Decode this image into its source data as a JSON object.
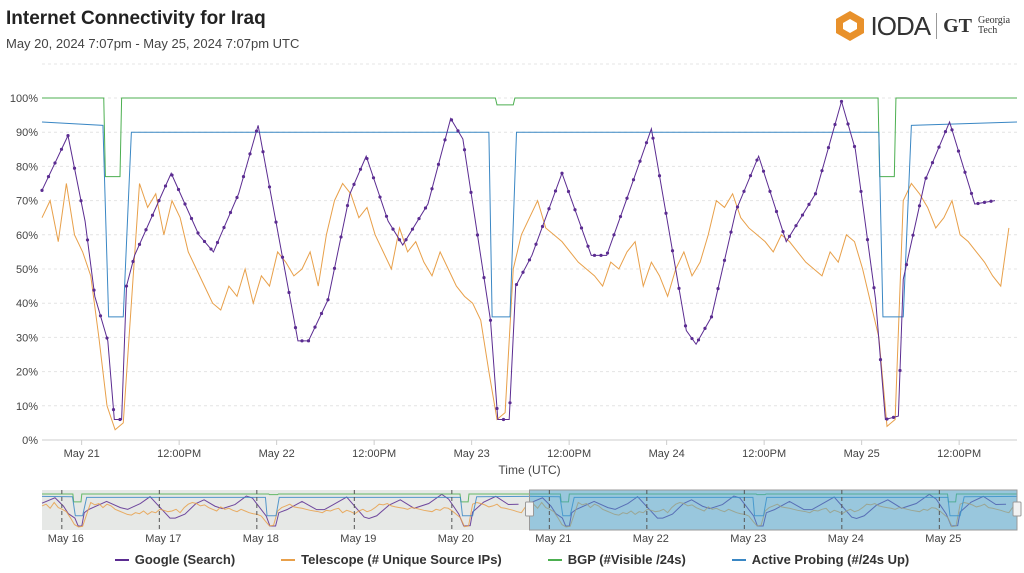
{
  "title": "Internet Connectivity for Iraq",
  "subtitle": "May 20, 2024 7:07pm - May 25, 2024 7:07pm UTC",
  "logo": {
    "text": "IODA",
    "partner": "Georgia Tech",
    "partner_mark": "GT"
  },
  "chart_data": {
    "type": "line",
    "xlabel": "Time (UTC)",
    "x_unit": "hours since May 20, 2024 19:07 UTC",
    "xlim": [
      0,
      120
    ],
    "ylim": [
      0,
      100
    ],
    "yticks": [
      "0%",
      "10%",
      "20%",
      "30%",
      "40%",
      "50%",
      "60%",
      "70%",
      "80%",
      "90%",
      "100%"
    ],
    "xticks": [
      {
        "h": 4.88,
        "label": "May 21"
      },
      {
        "h": 16.88,
        "label": "12:00PM"
      },
      {
        "h": 28.88,
        "label": "May 22"
      },
      {
        "h": 40.88,
        "label": "12:00PM"
      },
      {
        "h": 52.88,
        "label": "May 23"
      },
      {
        "h": 64.88,
        "label": "12:00PM"
      },
      {
        "h": 76.88,
        "label": "May 24"
      },
      {
        "h": 88.88,
        "label": "12:00PM"
      },
      {
        "h": 100.88,
        "label": "May 25"
      },
      {
        "h": 112.88,
        "label": "12:00PM"
      }
    ],
    "navigator_ticks": [
      "May 16",
      "May 17",
      "May 18",
      "May 19",
      "May 20",
      "May 21",
      "May 22",
      "May 23",
      "May 24",
      "May 25"
    ],
    "series": [
      {
        "name": "Google (Search)",
        "color": "#5b2c91",
        "markers": true,
        "points": [
          [
            0,
            73
          ],
          [
            3.2,
            89
          ],
          [
            5.3,
            64
          ],
          [
            6.5,
            42
          ],
          [
            8.1,
            29
          ],
          [
            8.9,
            6
          ],
          [
            9.8,
            6
          ],
          [
            10.4,
            45
          ],
          [
            11.4,
            54
          ],
          [
            15.9,
            78
          ],
          [
            19.3,
            60
          ],
          [
            21.1,
            55
          ],
          [
            24.2,
            72
          ],
          [
            26.6,
            92
          ],
          [
            31.5,
            29
          ],
          [
            32.8,
            29
          ],
          [
            35.2,
            41
          ],
          [
            37.9,
            72
          ],
          [
            39.9,
            83
          ],
          [
            42.6,
            64
          ],
          [
            44.4,
            57
          ],
          [
            47.5,
            69
          ],
          [
            50.3,
            94
          ],
          [
            51.8,
            88
          ],
          [
            55.2,
            35
          ],
          [
            56.1,
            6
          ],
          [
            57.5,
            6
          ],
          [
            58.3,
            45
          ],
          [
            60.3,
            54
          ],
          [
            64,
            78
          ],
          [
            67.6,
            54
          ],
          [
            69.5,
            54
          ],
          [
            71.9,
            70
          ],
          [
            75,
            91
          ],
          [
            79.3,
            32
          ],
          [
            80.5,
            28
          ],
          [
            82.4,
            36
          ],
          [
            85.4,
            67
          ],
          [
            88.2,
            83
          ],
          [
            91.6,
            58
          ],
          [
            95.2,
            72
          ],
          [
            98.4,
            99
          ],
          [
            100.1,
            85
          ],
          [
            102.6,
            41
          ],
          [
            103.8,
            6
          ],
          [
            105.4,
            7
          ],
          [
            106,
            47
          ],
          [
            108.7,
            76
          ],
          [
            111.7,
            93
          ],
          [
            114.8,
            69
          ],
          [
            117.3,
            70
          ]
        ]
      },
      {
        "name": "Telescope (# Unique Source IPs)",
        "color": "#e8a04a",
        "markers": false,
        "values": [
          65,
          70,
          58,
          75,
          60,
          55,
          48,
          30,
          10,
          3,
          5,
          40,
          75,
          68,
          72,
          60,
          70,
          65,
          55,
          50,
          45,
          40,
          38,
          45,
          42,
          50,
          40,
          48,
          45,
          55,
          52,
          48,
          50,
          55,
          45,
          60,
          70,
          75,
          72,
          65,
          68,
          60,
          55,
          50,
          62,
          55,
          58,
          52,
          48,
          55,
          50,
          45,
          42,
          40,
          35,
          20,
          6,
          8,
          50,
          60,
          65,
          70,
          62,
          60,
          58,
          55,
          52,
          50,
          48,
          45,
          52,
          50,
          55,
          58,
          45,
          52,
          48,
          42,
          50,
          55,
          48,
          52,
          60,
          70,
          68,
          72,
          65,
          62,
          60,
          58,
          55,
          60,
          58,
          55,
          52,
          50,
          48,
          55,
          52,
          60,
          58,
          50,
          40,
          30,
          4,
          6,
          70,
          75,
          72,
          68,
          62,
          65,
          70,
          60,
          58,
          55,
          52,
          48,
          45,
          62
        ]
      },
      {
        "name": "BGP (#Visible /24s)",
        "color": "#4caf50",
        "markers": false,
        "points": [
          [
            0,
            100
          ],
          [
            7.6,
            100
          ],
          [
            7.8,
            77
          ],
          [
            9.6,
            77
          ],
          [
            9.8,
            100
          ],
          [
            55.8,
            100
          ],
          [
            56,
            98
          ],
          [
            58,
            98
          ],
          [
            58.2,
            100
          ],
          [
            102.9,
            100
          ],
          [
            103.1,
            77
          ],
          [
            104.9,
            77
          ],
          [
            105.1,
            100
          ],
          [
            120,
            100
          ]
        ]
      },
      {
        "name": "Active Probing (#/24s Up)",
        "color": "#3a87c4",
        "markers": false,
        "points": [
          [
            0,
            93
          ],
          [
            7.5,
            92
          ],
          [
            8.2,
            36
          ],
          [
            10,
            36
          ],
          [
            11,
            90
          ],
          [
            55,
            90
          ],
          [
            55.4,
            36
          ],
          [
            57.6,
            36
          ],
          [
            58.4,
            90
          ],
          [
            103,
            90
          ],
          [
            103.5,
            36
          ],
          [
            106,
            36
          ],
          [
            107,
            92
          ],
          [
            120,
            93
          ]
        ]
      }
    ]
  }
}
